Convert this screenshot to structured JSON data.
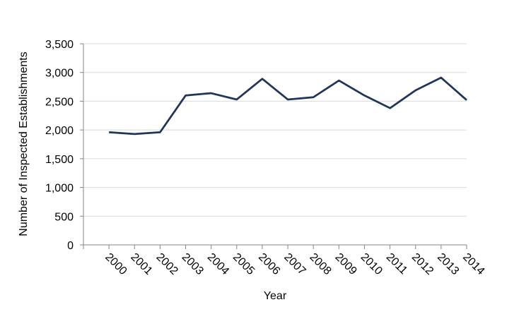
{
  "chart_data": {
    "type": "line",
    "x_label": "Year",
    "y_label": "Number of Inspected Establishments",
    "categories": [
      "2000",
      "2001",
      "2002",
      "2003",
      "2004",
      "2005",
      "2006",
      "2007",
      "2008",
      "2009",
      "2010",
      "2011",
      "2012",
      "2013",
      "2014"
    ],
    "values": [
      1960,
      1930,
      1960,
      2600,
      2640,
      2530,
      2890,
      2530,
      2570,
      2860,
      2600,
      2380,
      2690,
      2910,
      2520
    ],
    "color": "#1f3559",
    "ylim": [
      0,
      3500
    ],
    "yticks": [
      0,
      500,
      {
        "value": 1000,
        "label": "1,000"
      },
      {
        "value": 1500,
        "label": "1,500"
      },
      {
        "value": 2000,
        "label": "2,000"
      },
      {
        "value": 2500,
        "label": "2,500"
      },
      {
        "value": 3000,
        "label": "3,000"
      },
      {
        "value": 3500,
        "label": "3,500"
      }
    ],
    "grid": true
  }
}
